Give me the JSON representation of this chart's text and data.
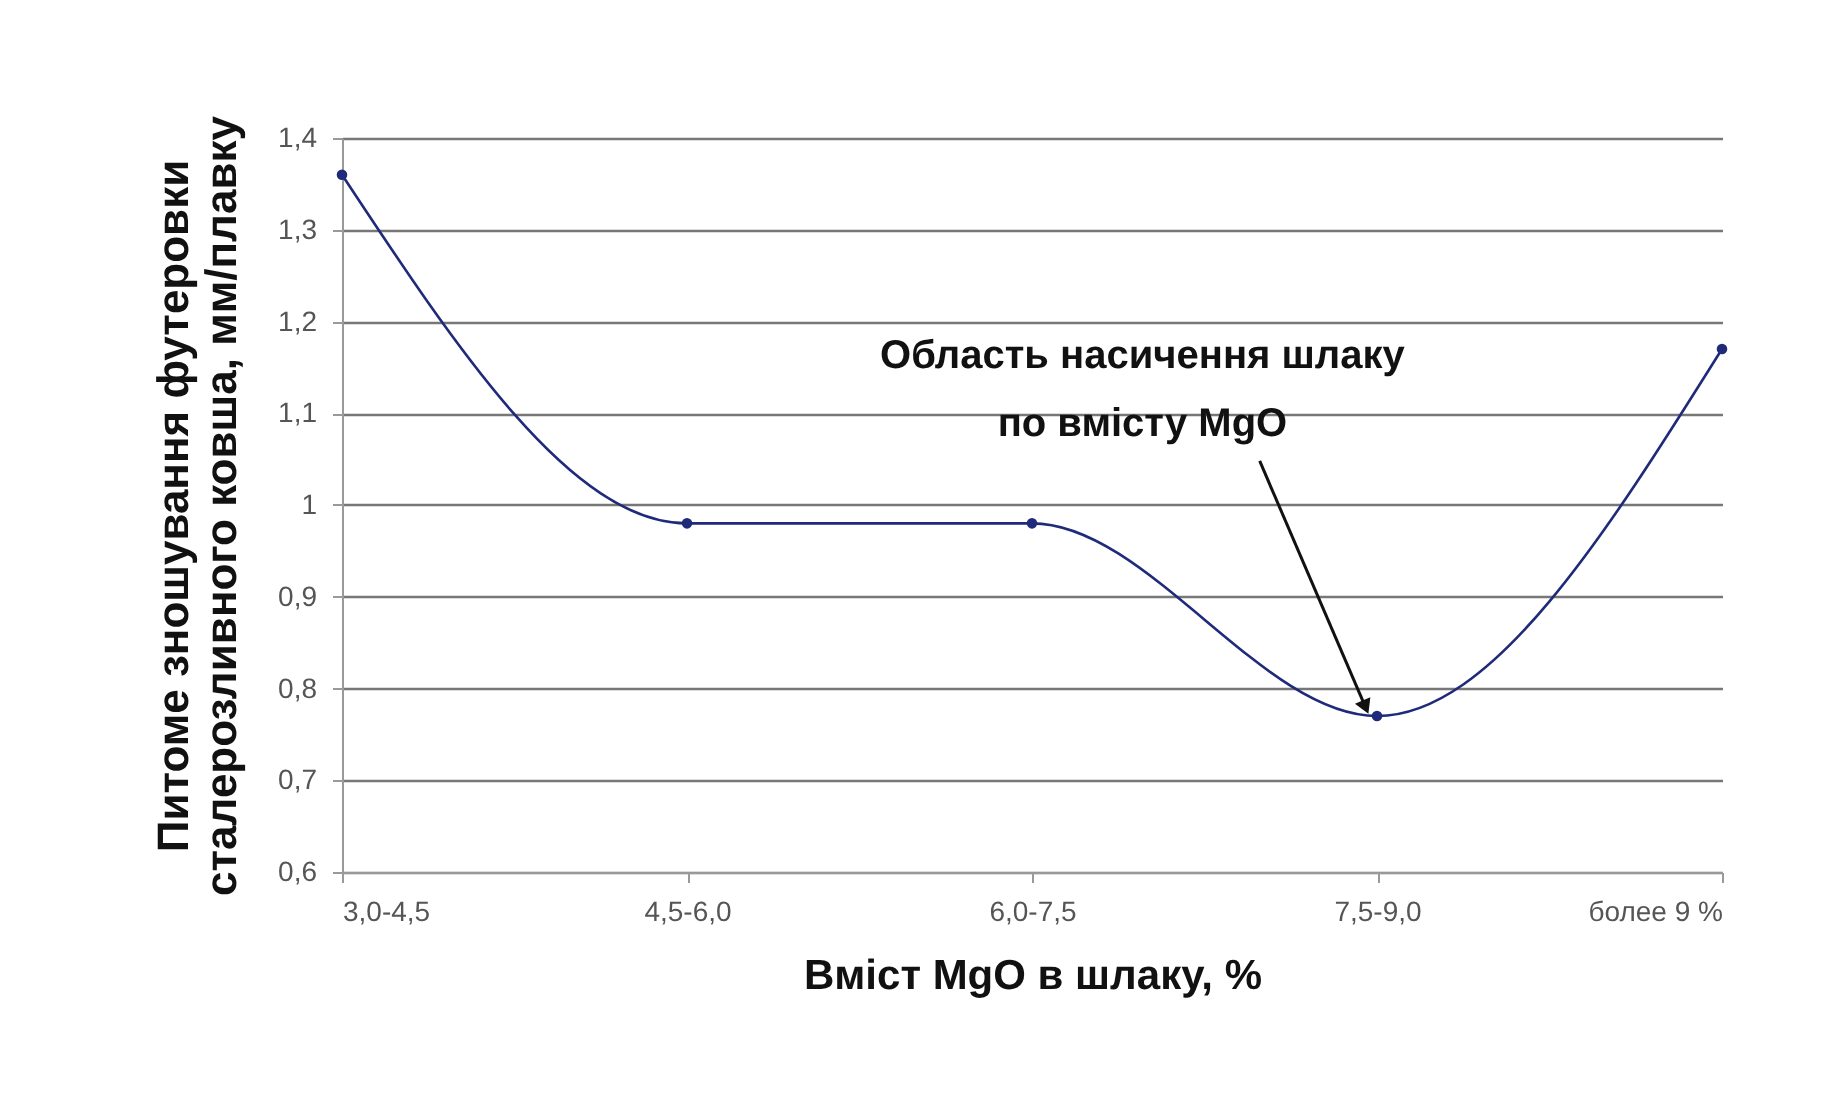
{
  "chart_data": {
    "type": "line",
    "xlabel": "Вміст MgO в шлаку, %",
    "ylabel": "Питоме зношування футеровки\nсталерозливного ковша, мм/плавку",
    "categories": [
      "3,0-4,5",
      "4,5-6,0",
      "6,0-7,5",
      "7,5-9,0",
      "более 9 %"
    ],
    "series": [
      {
        "color": "#1f2a7a",
        "values": [
          1.36,
          0.98,
          0.98,
          0.77,
          1.17
        ]
      }
    ],
    "ylim": [
      0.6,
      1.4
    ],
    "yticks": [
      {
        "value": 0.6,
        "label": "0,6"
      },
      {
        "value": 0.7,
        "label": "0,7"
      },
      {
        "value": 0.8,
        "label": "0,8"
      },
      {
        "value": 0.9,
        "label": "0,9"
      },
      {
        "value": 1,
        "label": "1"
      },
      {
        "value": 1.1,
        "label": "1,1"
      },
      {
        "value": 1.2,
        "label": "1,2"
      },
      {
        "value": 1.3,
        "label": "1,3"
      },
      {
        "value": 1.4,
        "label": "1,4"
      }
    ],
    "grid": "y",
    "marker": "circle",
    "line_style": "solid",
    "annotations": [
      "Область насичення шлаку\nпо вмісту MgO"
    ]
  }
}
